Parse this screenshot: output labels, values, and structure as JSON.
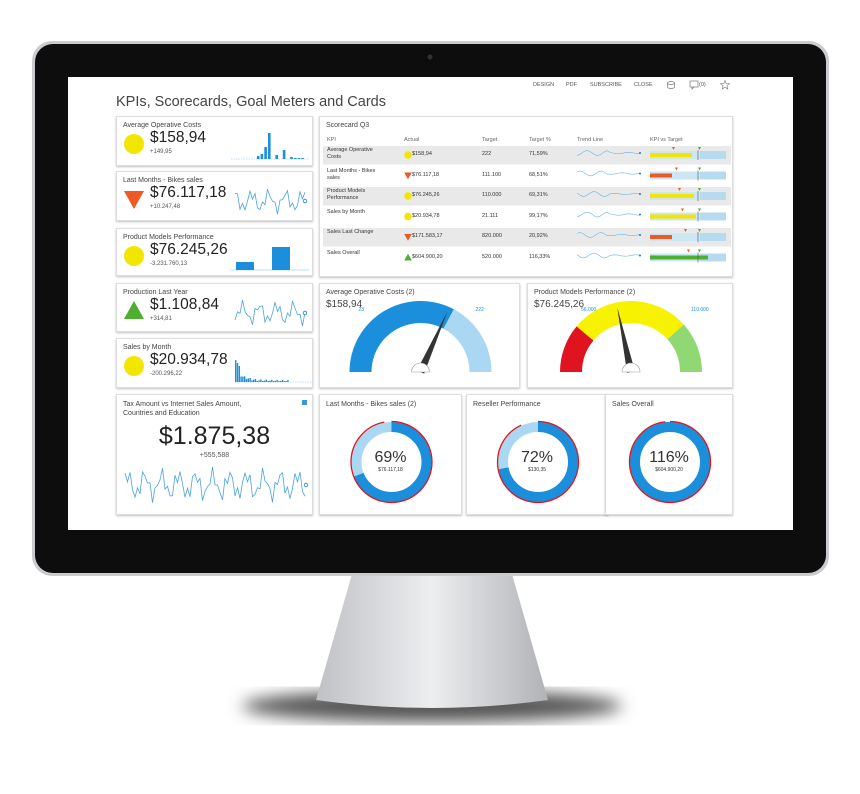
{
  "toolbar": {
    "design": "DESIGN",
    "pdf": "PDF",
    "subscribe": "SUBSCRIBE",
    "close": "CLOSE",
    "comments": "(0)"
  },
  "title": "KPIs, Scorecards, Goal Meters and Cards",
  "kpi_cards": [
    {
      "title": "Average Operative Costs",
      "value": "$158,94",
      "change": "+149,95"
    },
    {
      "title": "Last Months - Bikes sales",
      "value": "$76.117,18",
      "change": "+10.247,48"
    },
    {
      "title": "Product Models Performance",
      "value": "$76.245,26",
      "change": "-3.231.760,13"
    },
    {
      "title": "Production Last Year",
      "value": "$1.108,84",
      "change": "+314,81"
    },
    {
      "title": "Sales by Month",
      "value": "$20.934,78",
      "change": "-200.296,22"
    },
    {
      "title": "Tax Amount vs Internet Sales Amount, Countries and Education",
      "value": "$1.875,38",
      "change": "+555,588"
    }
  ],
  "scorecard": {
    "title": "Scorecard Q3",
    "columns": [
      "KPI",
      "Actual",
      "Target",
      "Target %",
      "Trend Line",
      "KPI vs Target"
    ],
    "rows": [
      [
        "Average Operative Costs",
        "$158,94",
        "222",
        "71,59%"
      ],
      [
        "Last Months - Bikes sales",
        "$76.117,18",
        "111.100",
        "68,51%"
      ],
      [
        "Product Models Performance",
        "$76.245,26",
        "110.000",
        "69,31%"
      ],
      [
        "Sales by Month",
        "$20.934,78",
        "21.111",
        "99,17%"
      ],
      [
        "Sales Last Change",
        "$171.583,17",
        "820.000",
        "20,92%"
      ],
      [
        "Sales Overall",
        "$604.900,20",
        "520.000",
        "116,33%"
      ]
    ]
  },
  "gauges": [
    {
      "title": "Average Operative Costs (2)",
      "value": "$158,94",
      "low": "23",
      "high": "222"
    },
    {
      "title": "Product Models Performance (2)",
      "value": "$76.245,26",
      "low": "56.000",
      "high": "110.000"
    }
  ],
  "donuts": [
    {
      "title": "Last Months - Bikes sales (2)",
      "value": 69,
      "value_label": "69%",
      "subtitle": "$76.117,18"
    },
    {
      "title": "Reseller Performance",
      "value": 72,
      "value_label": "72%",
      "subtitle": "$130,35"
    },
    {
      "title": "Sales Overall",
      "value": 116,
      "value_label": "116%",
      "subtitle": "$604.900,20"
    }
  ]
}
